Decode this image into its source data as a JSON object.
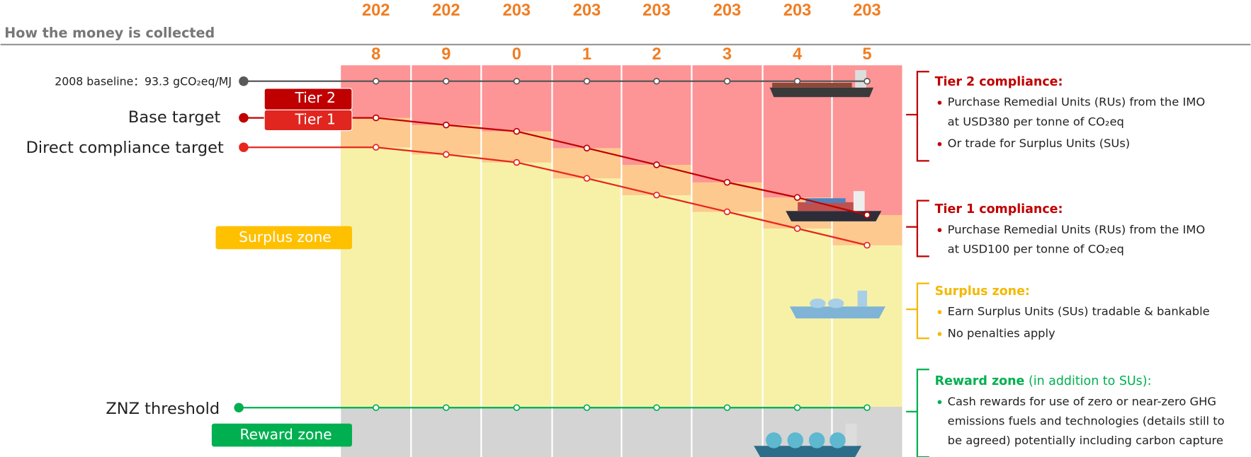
{
  "header": {
    "title": "How the money is collected"
  },
  "years": [
    {
      "top": "202",
      "bottom": "8"
    },
    {
      "top": "202",
      "bottom": "9"
    },
    {
      "top": "203",
      "bottom": "0"
    },
    {
      "top": "203",
      "bottom": "1"
    },
    {
      "top": "203",
      "bottom": "2"
    },
    {
      "top": "203",
      "bottom": "3"
    },
    {
      "top": "203",
      "bottom": "4"
    },
    {
      "top": "203",
      "bottom": "5"
    }
  ],
  "left_labels": {
    "baseline": "2008 baseline：93.3 gCO₂eq/MJ",
    "base_target": "Base target",
    "direct_target": "Direct compliance target",
    "znz_threshold": "ZNZ threshold"
  },
  "boxes": {
    "tier2": "Tier 2",
    "tier1": "Tier 1",
    "surplus": "Surplus zone",
    "reward": "Reward zone"
  },
  "legend": [
    {
      "title": "Tier 2 compliance:",
      "bullets": [
        [
          "Purchase Remedial Units (RUs) from the IMO",
          "at USD380 per tonne of CO₂eq"
        ],
        [
          "Or trade for Surplus Units (SUs)"
        ]
      ]
    },
    {
      "title": "Tier 1 compliance:",
      "bullets": [
        [
          "Purchase Remedial Units (RUs) from the IMO",
          "at USD100 per tonne of CO₂eq"
        ]
      ]
    },
    {
      "title": "Surplus zone:",
      "bullets": [
        [
          "Earn Surplus Units (SUs) tradable & bankable"
        ],
        [
          "No penalties apply"
        ]
      ]
    },
    {
      "title": "Reward zone",
      "title_note": "(in addition to SUs):",
      "bullets": [
        [
          "Cash rewards for use of zero or near-zero GHG",
          "emissions fuels and technologies (details still to",
          "be agreed) potentially including carbon capture"
        ]
      ]
    }
  ]
}
